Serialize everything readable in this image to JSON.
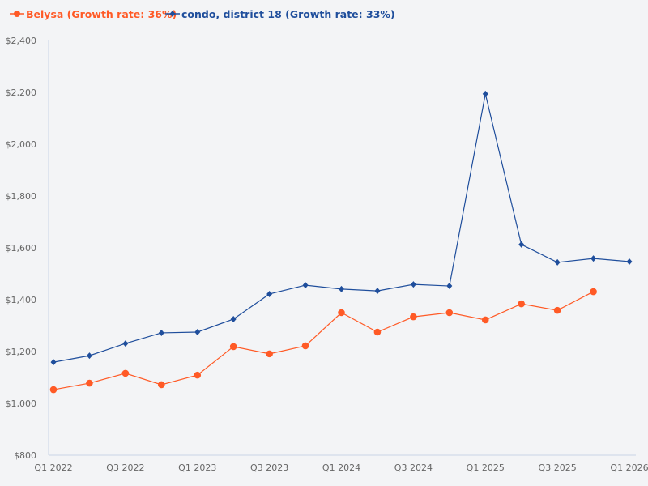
{
  "chart_data": {
    "type": "line",
    "title": "",
    "xlabel": "",
    "ylabel": "",
    "ylim": [
      800,
      2400
    ],
    "yticks": [
      "$800",
      "$1,000",
      "$1,200",
      "$1,400",
      "$1,600",
      "$1,800",
      "$2,000",
      "$2,200",
      "$2,400"
    ],
    "ytick_values": [
      800,
      1000,
      1200,
      1400,
      1600,
      1800,
      2000,
      2200,
      2400
    ],
    "x": [
      "Q1 2022",
      "Q2 2022",
      "Q3 2022",
      "Q4 2022",
      "Q1 2023",
      "Q2 2023",
      "Q3 2023",
      "Q4 2023",
      "Q1 2024",
      "Q2 2024",
      "Q3 2024",
      "Q4 2024",
      "Q1 2025",
      "Q2 2025",
      "Q3 2025",
      "Q4 2025",
      "Q1 2026"
    ],
    "xtick_labels": [
      "Q1 2022",
      "Q3 2022",
      "Q1 2023",
      "Q3 2023",
      "Q1 2024",
      "Q3 2024",
      "Q1 2025",
      "Q3 2025",
      "Q1 2026"
    ],
    "grid": false,
    "legend_placement": "top-left",
    "series": [
      {
        "name": "Belysa (Growth rate: 36%)",
        "color": "#ff5a26",
        "marker": "circle",
        "values": [
          1053,
          1078,
          1116,
          1072,
          1109,
          1219,
          1191,
          1222,
          1350,
          1275,
          1334,
          1350,
          1322,
          1384,
          1359,
          1431,
          null
        ]
      },
      {
        "name": "condo, district 18 (Growth rate: 33%)",
        "color": "#1f4e9c",
        "marker": "diamond",
        "values": [
          1159,
          1184,
          1231,
          1272,
          1275,
          1325,
          1422,
          1456,
          1441,
          1434,
          1459,
          1453,
          2194,
          1613,
          1544,
          1559,
          1547
        ]
      }
    ]
  }
}
